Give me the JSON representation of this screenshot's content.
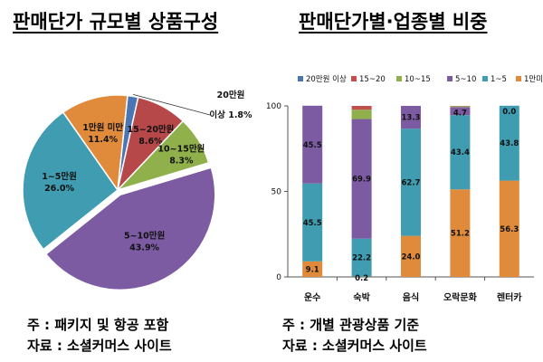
{
  "left": {
    "title": "판매단가 규모별 상품구성",
    "note": "주 : 패키지 및 항공 포함",
    "source": "자료 : 소셜커머스 사이트"
  },
  "right": {
    "title": "판매단가별·업종별 비중",
    "note": "주 : 개별 관광상품 기준",
    "source": "자료 : 소셜커머스 사이트"
  },
  "chart_data": [
    {
      "type": "pie",
      "title": "판매단가 규모별 상품구성",
      "slices": [
        {
          "label": "20만원 이상",
          "value": 1.8,
          "value_label": "1.8%",
          "color": "#4a77b4"
        },
        {
          "label": "15~20만원",
          "value": 8.6,
          "value_label": "8.6%",
          "color": "#b7484a"
        },
        {
          "label": "10~15만원",
          "value": 8.3,
          "value_label": "8.3%",
          "color": "#8fb04a"
        },
        {
          "label": "5~10만원",
          "value": 43.9,
          "value_label": "43.9%",
          "color": "#7c5ba3"
        },
        {
          "label": "1~5만원",
          "value": 26.0,
          "value_label": "26.0%",
          "color": "#3f9cb1"
        },
        {
          "label": "1만원 미만",
          "value": 11.4,
          "value_label": "11.4%",
          "color": "#e08a3c"
        }
      ]
    },
    {
      "type": "bar",
      "stacked": true,
      "title": "판매단가별·업종별 비중",
      "categories": [
        "운수",
        "숙박",
        "음식",
        "오락문화",
        "렌터카"
      ],
      "ylim": [
        0,
        100
      ],
      "yticks": [
        0,
        50,
        100
      ],
      "legend_position": "top",
      "series": [
        {
          "name": "1만미만",
          "color": "#e08a3c",
          "values": [
            9.1,
            0.2,
            24.0,
            51.2,
            56.3
          ]
        },
        {
          "name": "1~5",
          "color": "#3f9cb1",
          "values": [
            45.5,
            22.2,
            62.7,
            43.4,
            43.8
          ]
        },
        {
          "name": "5~10",
          "color": "#7c5ba3",
          "values": [
            45.5,
            69.9,
            13.3,
            4.7,
            0.0
          ]
        },
        {
          "name": "10~15",
          "color": "#8fb04a",
          "values": [
            0,
            5.5,
            0,
            0.5,
            0
          ]
        },
        {
          "name": "15~20",
          "color": "#c0504d",
          "values": [
            0,
            2.2,
            0,
            0.2,
            0
          ]
        },
        {
          "name": "20만원 이상",
          "color": "#4a77b4",
          "values": [
            0,
            0,
            0,
            0,
            0
          ]
        }
      ],
      "labels": [
        {
          "series": 0,
          "cat": 0,
          "text": "9.1"
        },
        {
          "series": 0,
          "cat": 1,
          "text": "0.2"
        },
        {
          "series": 0,
          "cat": 2,
          "text": "24.0"
        },
        {
          "series": 0,
          "cat": 3,
          "text": "51.2"
        },
        {
          "series": 0,
          "cat": 4,
          "text": "56.3"
        },
        {
          "series": 1,
          "cat": 0,
          "text": "45.5"
        },
        {
          "series": 1,
          "cat": 1,
          "text": "22.2"
        },
        {
          "series": 1,
          "cat": 2,
          "text": "62.7"
        },
        {
          "series": 1,
          "cat": 3,
          "text": "43.4"
        },
        {
          "series": 1,
          "cat": 4,
          "text": "43.8"
        },
        {
          "series": 2,
          "cat": 0,
          "text": "45.5"
        },
        {
          "series": 2,
          "cat": 1,
          "text": "69.9"
        },
        {
          "series": 2,
          "cat": 2,
          "text": "13.3"
        },
        {
          "series": 2,
          "cat": 3,
          "text": "4.7"
        },
        {
          "series": 2,
          "cat": 4,
          "text": "0.0"
        }
      ],
      "legend_order": [
        "20만원 이상",
        "15~20",
        "10~15",
        "5~10",
        "1~5",
        "1만미만"
      ]
    }
  ]
}
